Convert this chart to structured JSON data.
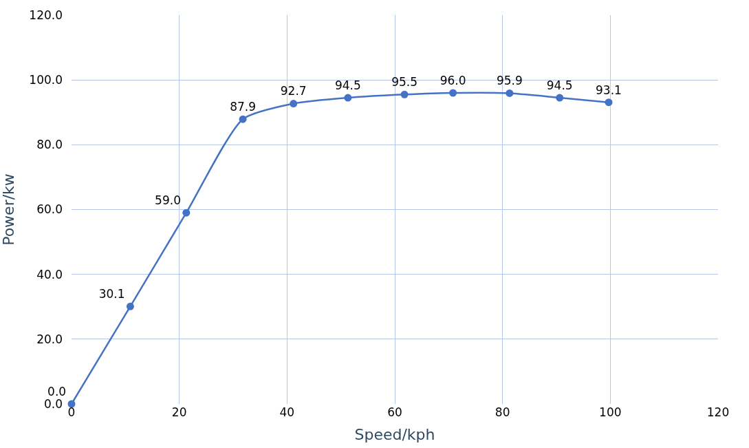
{
  "chart_data": {
    "type": "line",
    "xlabel": "Speed/kph",
    "ylabel": "Power/kw",
    "x": [
      0,
      10.9,
      21.3,
      31.8,
      41.2,
      51.3,
      61.8,
      70.8,
      81.3,
      90.6,
      99.7
    ],
    "series": [
      {
        "color": "#4472c4",
        "values": [
          0.0,
          30.1,
          59.0,
          87.9,
          92.7,
          94.5,
          95.5,
          96.0,
          95.9,
          94.5,
          93.1
        ],
        "value_labels": [
          "0.0",
          "30.1",
          "59.0",
          "87.9",
          "92.7",
          "94.5",
          "95.5",
          "96.0",
          "95.9",
          "94.5",
          "93.1"
        ]
      }
    ],
    "xlim": [
      0,
      120
    ],
    "xticks": [
      0,
      20,
      40,
      60,
      80,
      100,
      120
    ],
    "ylim": [
      0,
      120
    ],
    "yticks": [
      {
        "value": 0,
        "label": "0.0"
      },
      {
        "value": 20,
        "label": "20.0"
      },
      {
        "value": 40,
        "label": "40.0"
      },
      {
        "value": 60,
        "label": "60.0"
      },
      {
        "value": 80,
        "label": "80.0"
      },
      {
        "value": 100,
        "label": "100.0"
      },
      {
        "value": 120,
        "label": "120.0"
      }
    ],
    "grid": true,
    "marker": "circle",
    "line_style": "solid"
  }
}
